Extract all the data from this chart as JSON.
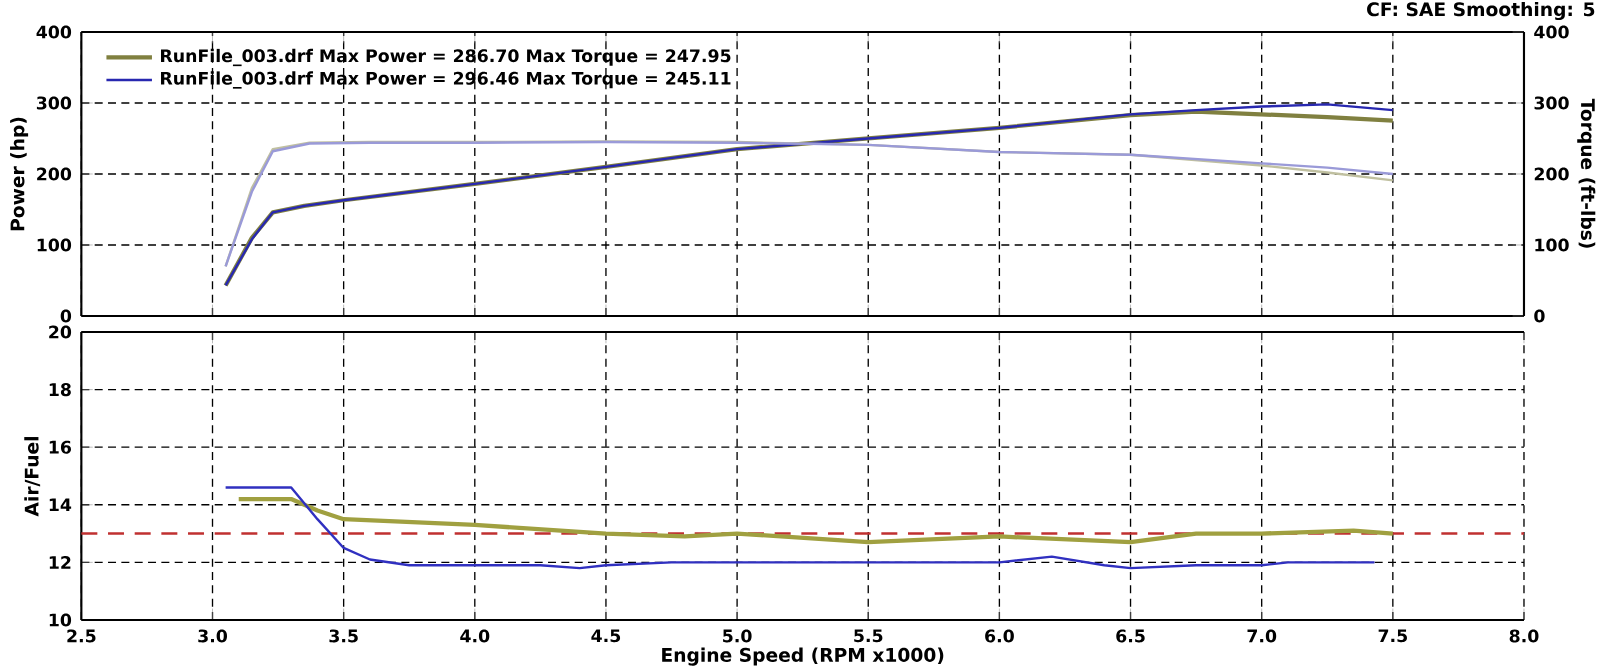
{
  "chart_data": [
    {
      "type": "line",
      "ylabel": "Power (hp)",
      "y2label": "Torque (ft-lbs)",
      "annotations": [
        "CF: SAE  Smoothing: 5"
      ],
      "xlim": [
        2.5,
        8.0
      ],
      "xticks": [
        2.5,
        3,
        3.5,
        4,
        4.5,
        5,
        5.5,
        6,
        6.5,
        7,
        7.5,
        8
      ],
      "ylim": [
        0,
        400
      ],
      "yticks": [
        0,
        100,
        200,
        300,
        400
      ],
      "y2lim": [
        0,
        400
      ],
      "y2ticks": [
        0,
        100,
        200,
        300,
        400
      ],
      "tick_labels": "y",
      "grid": true,
      "legend": "top left",
      "series": [
        {
          "name": "RunFile_003.drf Max Power = 286.70 Max Torque = 247.95",
          "color": "#808040",
          "x": [
            3.05,
            3.15,
            3.23,
            3.35,
            3.5,
            4.0,
            4.5,
            5.0,
            5.5,
            6.0,
            6.5,
            6.75,
            7.0,
            7.25,
            7.5
          ],
          "values": [
            43,
            110,
            146,
            155,
            163,
            186,
            210,
            235,
            250,
            265,
            283,
            288,
            284,
            280,
            275
          ]
        },
        {
          "name": "RunFile_003.drf Max Power = 296.46 Max Torque = 245.11",
          "color": "#2828b0",
          "x": [
            3.05,
            3.15,
            3.23,
            3.35,
            3.5,
            4.0,
            4.5,
            5.0,
            5.5,
            6.0,
            6.5,
            6.75,
            7.0,
            7.25,
            7.5
          ],
          "values": [
            43,
            108,
            146,
            155,
            163,
            186,
            210,
            235,
            250,
            265,
            284,
            290,
            295,
            298,
            290
          ]
        },
        {
          "axis": "y2",
          "color": "#c0c0a0",
          "x": [
            3.05,
            3.15,
            3.23,
            3.37,
            3.6,
            4.0,
            4.5,
            5.0,
            5.5,
            6.0,
            6.5,
            7.0,
            7.25,
            7.5
          ],
          "values": [
            70,
            180,
            235,
            244,
            245,
            245,
            246,
            245,
            241,
            231,
            227,
            212,
            202,
            191
          ]
        },
        {
          "axis": "y2",
          "color": "#9a9ad8",
          "x": [
            3.05,
            3.15,
            3.23,
            3.37,
            3.6,
            4.0,
            4.5,
            5.0,
            5.5,
            6.0,
            6.5,
            7.0,
            7.25,
            7.5
          ],
          "values": [
            70,
            175,
            232,
            243,
            244,
            244,
            245,
            244,
            241,
            231,
            227,
            215,
            209,
            200
          ]
        }
      ]
    },
    {
      "type": "line",
      "xlabel": "Engine Speed (RPM x1000)",
      "ylabel": "Air/Fuel",
      "xlim": [
        2.5,
        8.0
      ],
      "xticks": [
        2.5,
        {
          "value": 3.0,
          "label": "3.0"
        },
        3.5,
        {
          "value": 4.0,
          "label": "4.0"
        },
        4.5,
        {
          "value": 5.0,
          "label": "5.0"
        },
        5.5,
        {
          "value": 6.0,
          "label": "6.0"
        },
        6.5,
        {
          "value": 7.0,
          "label": "7.0"
        },
        7.5,
        {
          "value": 8.0,
          "label": "8.0"
        }
      ],
      "ylim": [
        10,
        20
      ],
      "yticks": [
        10,
        12,
        14,
        16,
        18,
        20
      ],
      "grid": true,
      "ref_lines": [
        {
          "axis": "y",
          "value": 13,
          "color": "#c03030",
          "line_style": "dashed"
        }
      ],
      "series": [
        {
          "color": "#a0a040",
          "x": [
            3.1,
            3.3,
            3.4,
            3.5,
            4.0,
            4.5,
            4.8,
            5.0,
            5.5,
            6.0,
            6.5,
            6.75,
            7.0,
            7.35,
            7.5
          ],
          "values": [
            14.2,
            14.2,
            13.8,
            13.5,
            13.3,
            13.0,
            12.9,
            13.0,
            12.7,
            12.9,
            12.7,
            13.0,
            13.0,
            13.1,
            13.0
          ]
        },
        {
          "color": "#3030c0",
          "x": [
            3.05,
            3.3,
            3.4,
            3.5,
            3.6,
            3.75,
            4.0,
            4.25,
            4.4,
            4.5,
            4.75,
            5.0,
            5.5,
            6.0,
            6.2,
            6.4,
            6.5,
            6.75,
            7.0,
            7.1,
            7.43
          ],
          "values": [
            14.6,
            14.6,
            13.5,
            12.5,
            12.1,
            11.9,
            11.9,
            11.9,
            11.8,
            11.9,
            12.0,
            12.0,
            12.0,
            12.0,
            12.2,
            11.9,
            11.8,
            11.9,
            11.9,
            12.0,
            12.0
          ]
        }
      ]
    }
  ]
}
